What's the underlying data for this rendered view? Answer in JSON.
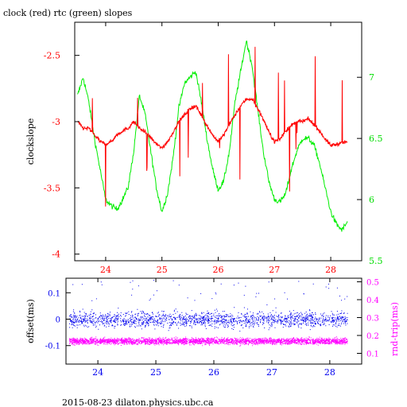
{
  "figure": {
    "title": "clock (red) rtc (green) slopes",
    "footer": "2015-08-23  dilaton.physics.ubc.ca"
  },
  "chart_data": [
    {
      "type": "line",
      "title": "clock (red) rtc (green) slopes",
      "xlim": [
        23.45,
        28.55
      ],
      "x_ticks": [
        24,
        25,
        26,
        27,
        28
      ],
      "ylabel": "clockslope",
      "ylim_left": [
        -4.05,
        -2.25
      ],
      "left_ticks": [
        -2.5,
        -3,
        -3.5,
        -4
      ],
      "ylim_right": [
        5.5,
        7.45
      ],
      "right_ticks": [
        7,
        6.5,
        6,
        5.5
      ],
      "grid": false,
      "colors": {
        "clock": "#ff0000",
        "rtc": "#00ee00"
      },
      "series": [
        {
          "name": "clock",
          "axis": "left",
          "x": [
            23.5,
            23.6,
            23.7,
            23.8,
            23.9,
            24.0,
            24.1,
            24.2,
            24.3,
            24.4,
            24.5,
            24.6,
            24.7,
            24.8,
            24.9,
            25.0,
            25.1,
            25.2,
            25.3,
            25.4,
            25.5,
            25.6,
            25.7,
            25.8,
            25.9,
            26.0,
            26.1,
            26.2,
            26.3,
            26.4,
            26.5,
            26.6,
            26.7,
            26.8,
            26.9,
            27.0,
            27.1,
            27.2,
            27.3,
            27.4,
            27.5,
            27.6,
            27.7,
            27.8,
            27.9,
            28.0,
            28.1,
            28.2,
            28.3
          ],
          "y": [
            -3.0,
            -3.05,
            -3.05,
            -3.1,
            -3.15,
            -3.17,
            -3.15,
            -3.1,
            -3.07,
            -3.05,
            -3.0,
            -3.05,
            -3.08,
            -3.12,
            -3.17,
            -3.2,
            -3.15,
            -3.08,
            -3.0,
            -2.95,
            -2.9,
            -2.88,
            -2.95,
            -3.03,
            -3.1,
            -3.15,
            -3.1,
            -3.02,
            -2.95,
            -2.88,
            -2.83,
            -2.83,
            -2.9,
            -2.98,
            -3.08,
            -3.15,
            -3.13,
            -3.07,
            -3.03,
            -3.0,
            -3.0,
            -2.98,
            -3.02,
            -3.07,
            -3.13,
            -3.18,
            -3.17,
            -3.16,
            -3.15
          ]
        },
        {
          "name": "rtc",
          "axis": "right",
          "x": [
            23.5,
            23.6,
            23.7,
            23.8,
            23.9,
            24.0,
            24.1,
            24.2,
            24.3,
            24.4,
            24.5,
            24.6,
            24.7,
            24.8,
            24.9,
            25.0,
            25.1,
            25.2,
            25.3,
            25.4,
            25.5,
            25.6,
            25.7,
            25.8,
            25.9,
            26.0,
            26.1,
            26.2,
            26.3,
            26.4,
            26.5,
            26.6,
            26.7,
            26.8,
            26.9,
            27.0,
            27.1,
            27.2,
            27.3,
            27.4,
            27.5,
            27.6,
            27.7,
            27.8,
            27.9,
            28.0,
            28.1,
            28.2,
            28.3
          ],
          "y": [
            6.85,
            7.0,
            6.8,
            6.5,
            6.25,
            6.0,
            5.95,
            5.92,
            6.0,
            6.1,
            6.4,
            6.85,
            6.7,
            6.4,
            6.1,
            5.9,
            6.05,
            6.35,
            6.75,
            6.95,
            7.0,
            7.05,
            6.8,
            6.5,
            6.25,
            6.08,
            6.15,
            6.4,
            6.8,
            7.05,
            7.3,
            7.1,
            6.75,
            6.4,
            6.15,
            6.0,
            5.98,
            6.05,
            6.25,
            6.4,
            6.5,
            6.5,
            6.45,
            6.3,
            6.1,
            5.9,
            5.8,
            5.75,
            5.82
          ]
        }
      ]
    },
    {
      "type": "scatter",
      "xlim": [
        23.45,
        28.55
      ],
      "x_ticks": [
        24,
        25,
        26,
        27,
        28
      ],
      "ylabel": "offset(ms)",
      "ylim_left": [
        -0.17,
        0.155
      ],
      "left_ticks": [
        0.1,
        0,
        -0.1
      ],
      "y2label": "rnd-trip(ms)",
      "ylim_right": [
        0.04,
        0.52
      ],
      "right_ticks": [
        0.5,
        0.4,
        0.3,
        0.2,
        0.1
      ],
      "grid": false,
      "colors": {
        "offset": "#0000ee",
        "rnd-trip": "#ff00ff"
      },
      "series": [
        {
          "name": "offset",
          "axis": "left",
          "x_range": [
            23.5,
            28.3
          ],
          "center": 0.0,
          "spread": 0.05
        },
        {
          "name": "rnd-trip",
          "axis": "right",
          "x_range": [
            23.5,
            28.3
          ],
          "center": 0.17,
          "spread": 0.03
        }
      ]
    }
  ]
}
